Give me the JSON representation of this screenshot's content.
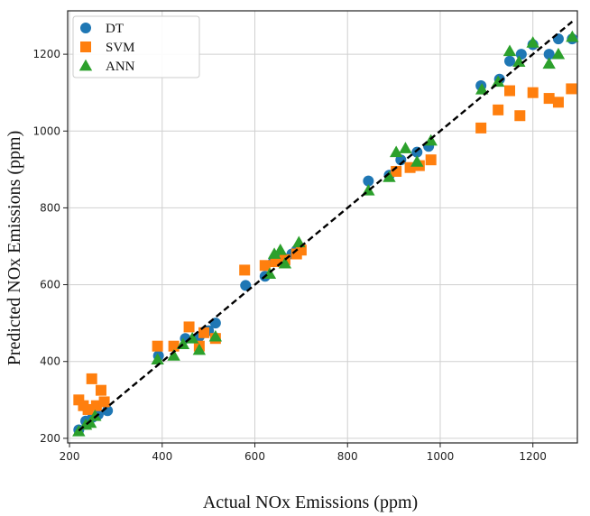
{
  "chart_data": {
    "type": "scatter",
    "title": "",
    "xlabel": "Actual NOx  Emissions (ppm)",
    "ylabel": "Predicted NOx  Emissions (ppm)",
    "xlim": [
      196,
      1296
    ],
    "ylim": [
      188,
      1313
    ],
    "xticks": [
      200,
      400,
      600,
      800,
      1000,
      1200
    ],
    "yticks": [
      200,
      400,
      600,
      800,
      1000,
      1200
    ],
    "grid": true,
    "legend_position": "top-left",
    "reference_line": {
      "style": "dashed",
      "color": "#000000",
      "from": [
        220,
        220
      ],
      "to": [
        1285,
        1285
      ]
    },
    "series": [
      {
        "name": "DT",
        "marker": "circle",
        "color": "#1f77b4",
        "points": [
          [
            220,
            222
          ],
          [
            235,
            245
          ],
          [
            250,
            255
          ],
          [
            262,
            262
          ],
          [
            282,
            272
          ],
          [
            392,
            415
          ],
          [
            450,
            460
          ],
          [
            480,
            465
          ],
          [
            500,
            480
          ],
          [
            515,
            500
          ],
          [
            580,
            598
          ],
          [
            622,
            622
          ],
          [
            640,
            660
          ],
          [
            660,
            670
          ],
          [
            680,
            680
          ],
          [
            690,
            690
          ],
          [
            845,
            870
          ],
          [
            890,
            885
          ],
          [
            915,
            925
          ],
          [
            950,
            945
          ],
          [
            975,
            960
          ],
          [
            1088,
            1118
          ],
          [
            1128,
            1135
          ],
          [
            1150,
            1182
          ],
          [
            1175,
            1200
          ],
          [
            1200,
            1225
          ],
          [
            1235,
            1200
          ],
          [
            1255,
            1240
          ],
          [
            1285,
            1240
          ]
        ]
      },
      {
        "name": "SVM",
        "marker": "square",
        "color": "#ff7f0e",
        "points": [
          [
            220,
            300
          ],
          [
            230,
            285
          ],
          [
            240,
            275
          ],
          [
            248,
            355
          ],
          [
            258,
            285
          ],
          [
            268,
            325
          ],
          [
            275,
            295
          ],
          [
            390,
            440
          ],
          [
            425,
            440
          ],
          [
            458,
            490
          ],
          [
            480,
            440
          ],
          [
            490,
            475
          ],
          [
            515,
            460
          ],
          [
            578,
            638
          ],
          [
            622,
            650
          ],
          [
            645,
            660
          ],
          [
            665,
            665
          ],
          [
            690,
            680
          ],
          [
            700,
            690
          ],
          [
            905,
            895
          ],
          [
            935,
            905
          ],
          [
            955,
            910
          ],
          [
            980,
            925
          ],
          [
            1088,
            1008
          ],
          [
            1125,
            1055
          ],
          [
            1150,
            1105
          ],
          [
            1172,
            1040
          ],
          [
            1200,
            1100
          ],
          [
            1235,
            1085
          ],
          [
            1255,
            1075
          ],
          [
            1283,
            1110
          ]
        ]
      },
      {
        "name": "ANN",
        "marker": "triangle",
        "color": "#2ca02c",
        "points": [
          [
            220,
            218
          ],
          [
            235,
            235
          ],
          [
            245,
            240
          ],
          [
            255,
            258
          ],
          [
            390,
            405
          ],
          [
            425,
            415
          ],
          [
            445,
            445
          ],
          [
            465,
            460
          ],
          [
            480,
            430
          ],
          [
            515,
            465
          ],
          [
            632,
            628
          ],
          [
            642,
            680
          ],
          [
            655,
            690
          ],
          [
            665,
            655
          ],
          [
            695,
            710
          ],
          [
            845,
            845
          ],
          [
            890,
            880
          ],
          [
            905,
            945
          ],
          [
            925,
            955
          ],
          [
            950,
            920
          ],
          [
            980,
            975
          ],
          [
            1090,
            1108
          ],
          [
            1125,
            1128
          ],
          [
            1150,
            1208
          ],
          [
            1170,
            1180
          ],
          [
            1200,
            1230
          ],
          [
            1235,
            1175
          ],
          [
            1255,
            1200
          ],
          [
            1285,
            1245
          ]
        ]
      }
    ]
  }
}
